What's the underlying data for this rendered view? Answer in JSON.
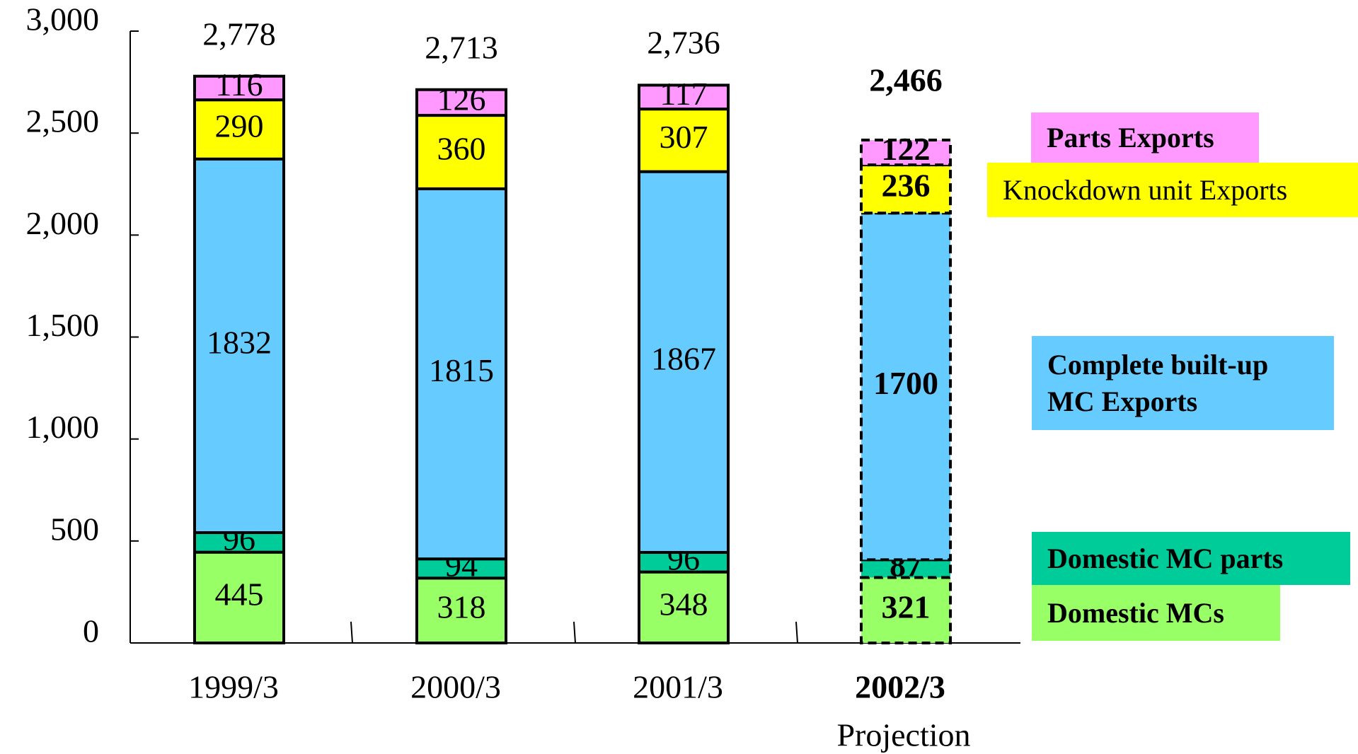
{
  "chart_data": {
    "type": "stacked_bar",
    "categories": [
      "1999/3",
      "2000/3",
      "2001/3",
      "2002/3"
    ],
    "series": [
      {
        "name": "Domestic  MCs",
        "color": "#99ff66",
        "values": [
          445,
          318,
          348,
          321
        ]
      },
      {
        "name": "Domestic  MC parts",
        "color": "#00cc99",
        "values": [
          96,
          94,
          96,
          87
        ]
      },
      {
        "name": "Complete built-up MC Exports",
        "color": "#66ccff",
        "values": [
          1832,
          1815,
          1867,
          1700
        ]
      },
      {
        "name": "Knockdown unit Exports",
        "color": "#ffff00",
        "values": [
          290,
          360,
          307,
          236
        ]
      },
      {
        "name": "Parts Exports",
        "color": "#ff99ff",
        "values": [
          116,
          126,
          117,
          122
        ]
      }
    ],
    "totals": [
      {
        "value": 2778,
        "label": "2,778"
      },
      {
        "value": 2713,
        "label": "2,713"
      },
      {
        "value": 2736,
        "label": "2,736"
      },
      {
        "value": 2466,
        "label": "2,466"
      }
    ],
    "annotations": [
      {
        "text": "Projection",
        "category": 3
      }
    ],
    "ylim": [
      0,
      3000
    ],
    "yticks": [
      0,
      500,
      {
        "value": 1000,
        "label": "1,000"
      },
      {
        "value": 1500,
        "label": "1,500"
      },
      {
        "value": 2000,
        "label": "2,000"
      },
      {
        "value": 2500,
        "label": "2,500"
      },
      {
        "value": 3000,
        "label": "3,000"
      }
    ]
  }
}
